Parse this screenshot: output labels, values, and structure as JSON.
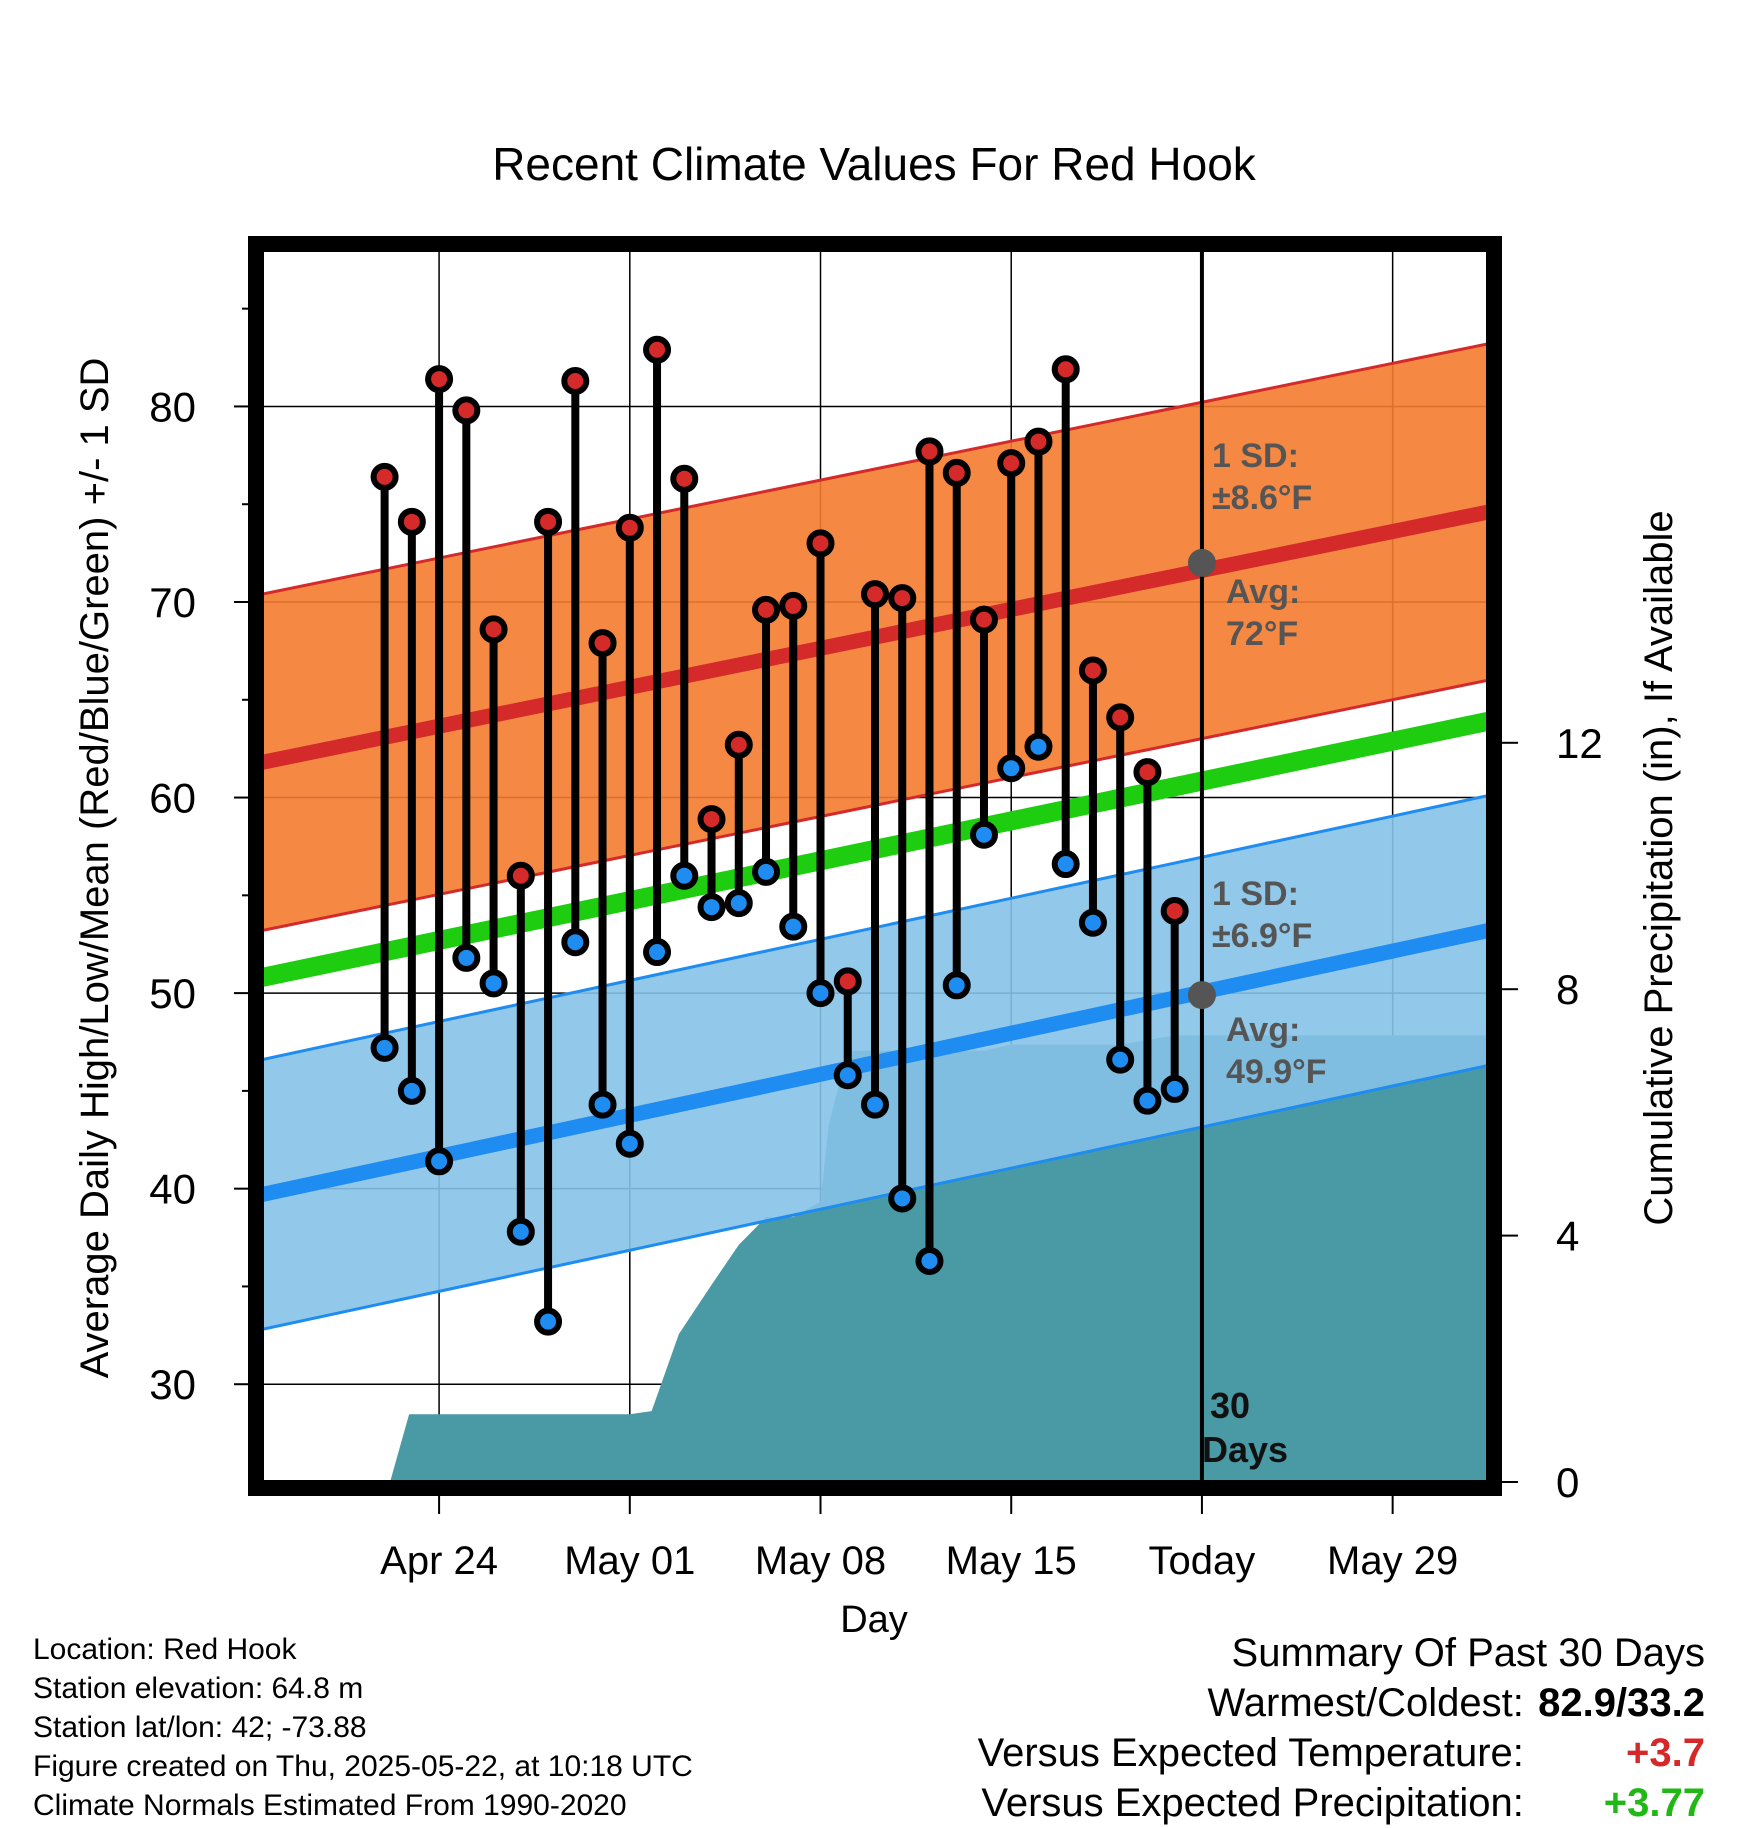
{
  "chart_data": {
    "type": "line",
    "title": "Recent Climate Values For Red Hook",
    "xlabel": "Day",
    "ylabel": "Average Daily High/Low/Mean (Red/Blue/Green) +/- 1 SD",
    "y2label": "Cumulative Precipitation (in), If Available",
    "ylim": [
      25,
      88
    ],
    "y2lim": [
      0,
      20
    ],
    "yticks": [
      30,
      40,
      50,
      60,
      70,
      80
    ],
    "y2ticks": [
      0,
      4,
      8,
      12
    ],
    "x_range_days": [
      -34.5,
      10.5
    ],
    "xtick_labels": [
      {
        "day": -28,
        "label": "Apr 24"
      },
      {
        "day": -21,
        "label": "May 01"
      },
      {
        "day": -14,
        "label": "May 08"
      },
      {
        "day": -7,
        "label": "May 15"
      },
      {
        "day": 0,
        "label": "Today"
      },
      {
        "day": 7,
        "label": "May 29"
      }
    ],
    "today_marker_label": "30\nDays",
    "normal_high": {
      "start": 61.8,
      "end": 74.6,
      "sd": 8.6,
      "today_value": 72,
      "sd_label": "1 SD:",
      "sd_value_label": "±8.6°F",
      "avg_label": "Avg:",
      "avg_value_label": "72°F",
      "color": "#d42a2a",
      "band_color": "#f47c30"
    },
    "normal_low": {
      "start": 39.7,
      "end": 53.2,
      "sd": 6.9,
      "today_value": 49.9,
      "sd_label": "1 SD:",
      "sd_value_label": "±6.9°F",
      "avg_label": "Avg:",
      "avg_value_label": "49.9°F",
      "color": "#1e8cf0",
      "band_color": "#86c2e8"
    },
    "normal_mean": {
      "start": 50.8,
      "end": 63.9,
      "color": "#1ecc10"
    },
    "daily": [
      {
        "day": -30,
        "high": 76.4,
        "low": 47.2
      },
      {
        "day": -29,
        "high": 74.1,
        "low": 45.0
      },
      {
        "day": -28,
        "high": 81.4,
        "low": 41.4
      },
      {
        "day": -27,
        "high": 79.8,
        "low": 51.8
      },
      {
        "day": -26,
        "high": 68.6,
        "low": 50.5
      },
      {
        "day": -25,
        "high": 56.0,
        "low": 37.8
      },
      {
        "day": -24,
        "high": 74.1,
        "low": 33.2
      },
      {
        "day": -23,
        "high": 81.3,
        "low": 52.6
      },
      {
        "day": -22,
        "high": 67.9,
        "low": 44.3
      },
      {
        "day": -21,
        "high": 73.8,
        "low": 42.3
      },
      {
        "day": -20,
        "high": 82.9,
        "low": 52.1
      },
      {
        "day": -19,
        "high": 76.3,
        "low": 56.0
      },
      {
        "day": -18,
        "high": 58.9,
        "low": 54.4
      },
      {
        "day": -17,
        "high": 62.7,
        "low": 54.6
      },
      {
        "day": -16,
        "high": 69.6,
        "low": 56.2
      },
      {
        "day": -15,
        "high": 69.8,
        "low": 53.4
      },
      {
        "day": -14,
        "high": 73.0,
        "low": 50.0
      },
      {
        "day": -13,
        "high": 50.6,
        "low": 45.8
      },
      {
        "day": -12,
        "high": 70.4,
        "low": 44.3
      },
      {
        "day": -11,
        "high": 70.2,
        "low": 39.5
      },
      {
        "day": -10,
        "high": 77.7,
        "low": 36.3
      },
      {
        "day": -9,
        "high": 76.6,
        "low": 50.4
      },
      {
        "day": -8,
        "high": 69.1,
        "low": 58.1
      },
      {
        "day": -7,
        "high": 77.1,
        "low": 61.5
      },
      {
        "day": -6,
        "high": 78.2,
        "low": 62.6
      },
      {
        "day": -5,
        "high": 81.9,
        "low": 56.6
      },
      {
        "day": -4,
        "high": 66.5,
        "low": 53.6
      },
      {
        "day": -3,
        "high": 64.1,
        "low": 46.6
      },
      {
        "day": -2,
        "high": 61.3,
        "low": 44.5
      },
      {
        "day": -1,
        "high": 54.2,
        "low": 45.1
      }
    ],
    "precip_color": "#4a9aa5",
    "cumulative_precip": [
      {
        "day": -34.5,
        "in": 0
      },
      {
        "day": -30.5,
        "in": 0
      },
      {
        "day": -29.8,
        "in": 0
      },
      {
        "day": -29.1,
        "in": 1.1
      },
      {
        "day": -21,
        "in": 1.1
      },
      {
        "day": -20.2,
        "in": 1.15
      },
      {
        "day": -19.2,
        "in": 2.4
      },
      {
        "day": -18,
        "in": 3.2
      },
      {
        "day": -17,
        "in": 3.85
      },
      {
        "day": -16,
        "in": 4.3
      },
      {
        "day": -15,
        "in": 4.3
      },
      {
        "day": -14,
        "in": 4.55
      },
      {
        "day": -13.7,
        "in": 5.8
      },
      {
        "day": -13,
        "in": 7.0
      },
      {
        "day": -8,
        "in": 7.0
      },
      {
        "day": -7,
        "in": 7.1
      },
      {
        "day": -3,
        "in": 7.1
      },
      {
        "day": -1,
        "in": 7.25
      },
      {
        "day": 10.5,
        "in": 7.25
      }
    ]
  },
  "footer": {
    "location": "Location: Red Hook",
    "elevation": "Station elevation: 64.8 m",
    "latlon": "Station lat/lon: 42; -73.88",
    "created": "Figure created on Thu, 2025-05-22, at 10:18 UTC",
    "normals": "Climate Normals Estimated From 1990-2020"
  },
  "summary": {
    "heading": "Summary Of Past 30 Days",
    "warmest_coldest_label": "Warmest/Coldest:",
    "warmest_coldest_value": "82.9/33.2",
    "temp_label": "Versus Expected Temperature:",
    "temp_value": "+3.7",
    "precip_label": "Versus Expected Precipitation:",
    "precip_value": "+3.77"
  }
}
